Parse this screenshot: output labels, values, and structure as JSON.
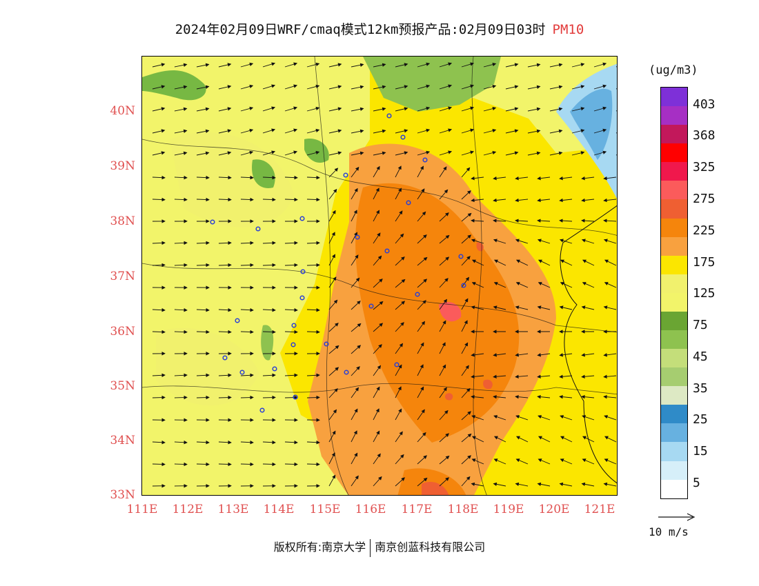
{
  "title": {
    "main": "2024年02月09日WRF/cmaq模式12km预报产品:02月09日03时",
    "variable": "PM10"
  },
  "map": {
    "lon_labels": [
      "111E",
      "112E",
      "113E",
      "114E",
      "115E",
      "116E",
      "117E",
      "118E",
      "119E",
      "120E",
      "121E"
    ],
    "lat_labels": [
      "40N",
      "39N",
      "38N",
      "37N",
      "36N",
      "35N",
      "34N",
      "33N"
    ],
    "colors": {
      "axis_label": "#e05050",
      "land_low": "#f2f46a",
      "land_mid": "#fbe600",
      "land_high": "#fbb03b",
      "land_very_high": "#f6891f",
      "land_peak": "#f36b62",
      "green": "#77b843",
      "sea": "#66b3e3",
      "sea_deep": "#3f86c8"
    }
  },
  "legend": {
    "unit": "(ug/m3)",
    "labels": [
      "403",
      "368",
      "325",
      "275",
      "225",
      "175",
      "125",
      "75",
      "45",
      "35",
      "25",
      "15",
      "5"
    ],
    "colors": [
      "#7e30d8",
      "#a62fc4",
      "#c2185b",
      "#ff0000",
      "#f0184c",
      "#fb5b5b",
      "#ef5f32",
      "#f5850c",
      "#f8a13f",
      "#fbe600",
      "#f1f16d",
      "#f2f46a",
      "#6aa533",
      "#8ec24f",
      "#c4de7a",
      "#a6cd70",
      "#dde9c4",
      "#2f8bc8",
      "#67b1e0",
      "#a7d9f2",
      "#d6eff9",
      "#ffffff"
    ]
  },
  "wind_reference": "10 m/s",
  "copyright": {
    "left": "版权所有:南京大学",
    "right": "南京创蓝科技有限公司"
  }
}
